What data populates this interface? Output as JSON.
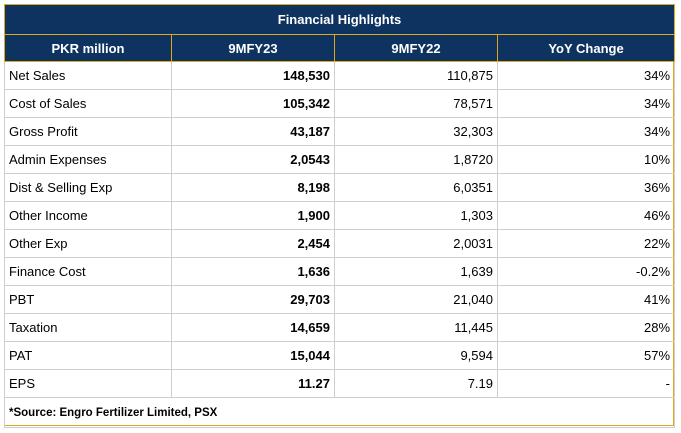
{
  "table": {
    "title": "Financial Highlights",
    "headers": [
      "PKR million",
      "9MFY23",
      "9MFY22",
      "YoY Change"
    ],
    "rows": [
      {
        "label": "Net Sales",
        "cur": "148,530",
        "prev": "110,875",
        "yoy": "34%"
      },
      {
        "label": "Cost of Sales",
        "cur": "105,342",
        "prev": "78,571",
        "yoy": "34%"
      },
      {
        "label": "Gross Profit",
        "cur": "43,187",
        "prev": "32,303",
        "yoy": "34%"
      },
      {
        "label": "Admin Expenses",
        "cur": "2,0543",
        "prev": "1,8720",
        "yoy": "10%"
      },
      {
        "label": "Dist & Selling Exp",
        "cur": "8,198",
        "prev": "6,0351",
        "yoy": "36%"
      },
      {
        "label": "Other Income",
        "cur": "1,900",
        "prev": "1,303",
        "yoy": "46%"
      },
      {
        "label": "Other Exp",
        "cur": "2,454",
        "prev": "2,0031",
        "yoy": "22%"
      },
      {
        "label": "Finance Cost",
        "cur": "1,636",
        "prev": "1,639",
        "yoy": "-0.2%"
      },
      {
        "label": "PBT",
        "cur": "29,703",
        "prev": "21,040",
        "yoy": "41%"
      },
      {
        "label": "Taxation",
        "cur": "14,659",
        "prev": "11,445",
        "yoy": "28%"
      },
      {
        "label": "PAT",
        "cur": "15,044",
        "prev": "9,594",
        "yoy": "57%"
      },
      {
        "label": "EPS",
        "cur": "11.27",
        "prev": "7.19",
        "yoy": "-"
      }
    ],
    "source": "*Source: Engro Fertilizer Limited, PSX"
  },
  "colors": {
    "header_bg": "#0e3360",
    "header_text": "#ffffff",
    "border_accent": "#e0a81c",
    "grid": "#cfcfcf"
  }
}
